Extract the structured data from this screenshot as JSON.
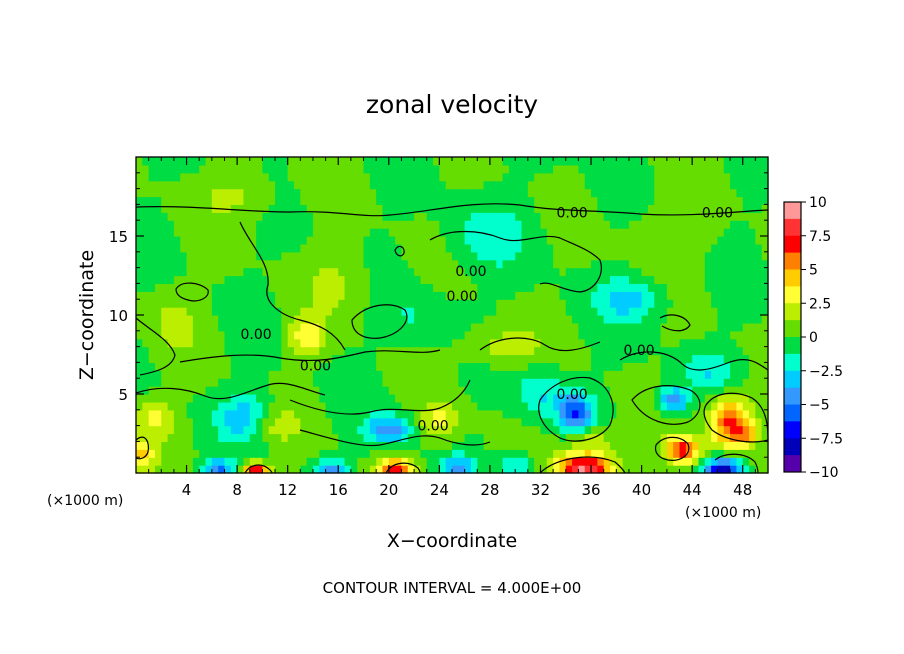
{
  "chart_data": {
    "type": "heatmap",
    "title": "zonal velocity",
    "xlabel": "X−coordinate",
    "ylabel": "Z−coordinate",
    "x_unit_left": "(×1000 m)",
    "x_unit_right": "(×1000 m)",
    "footer": "CONTOUR INTERVAL = 4.000E+00",
    "xlim": [
      0,
      50
    ],
    "ylim": [
      0,
      20
    ],
    "x_ticks": [
      4,
      8,
      12,
      16,
      20,
      24,
      28,
      32,
      36,
      40,
      44,
      48
    ],
    "x_tick_labels": [
      "4",
      "8",
      "12",
      "16",
      "20",
      "24",
      "28",
      "32",
      "36",
      "40",
      "44",
      "48"
    ],
    "y_ticks": [
      5,
      10,
      15
    ],
    "y_tick_labels": [
      "5",
      "10",
      "15"
    ],
    "contour_labels": [
      {
        "text": "0.00",
        "x": 34.5,
        "y": 16.5
      },
      {
        "text": "0.00",
        "x": 46.0,
        "y": 16.5
      },
      {
        "text": "0.00",
        "x": 26.5,
        "y": 12.8
      },
      {
        "text": "0.00",
        "x": 25.8,
        "y": 11.2
      },
      {
        "text": "0.00",
        "x": 9.5,
        "y": 8.8
      },
      {
        "text": "0.00",
        "x": 14.2,
        "y": 6.8
      },
      {
        "text": "0.00",
        "x": 39.8,
        "y": 7.8
      },
      {
        "text": "0.00",
        "x": 34.5,
        "y": 5.0
      },
      {
        "text": "0.00",
        "x": 23.5,
        "y": 3.0
      }
    ],
    "colorbar": {
      "min": -10,
      "max": 10,
      "ticks": [
        10,
        7.5,
        5,
        2.5,
        0,
        -2.5,
        -5,
        -7.5,
        -10
      ],
      "tick_labels": [
        "10",
        "7.5",
        "5",
        "2.5",
        "0",
        "−2.5",
        "−5",
        "−7.5",
        "−10"
      ],
      "colors": [
        "#ff9999",
        "#ff3333",
        "#ff0000",
        "#ff8000",
        "#ffcc00",
        "#ffff33",
        "#bbee00",
        "#66dd00",
        "#00dd44",
        "#00ffcc",
        "#00ccff",
        "#3399ff",
        "#0066ff",
        "#0000ff",
        "#0000bb",
        "#5500aa"
      ]
    },
    "features": [
      {
        "x": 20.5,
        "y": 0.2,
        "v": 7.0,
        "sx": 1.3,
        "sz": 0.7
      },
      {
        "x": 9.5,
        "y": 0.1,
        "v": 8.0,
        "sx": 1.0,
        "sz": 0.6
      },
      {
        "x": 35.5,
        "y": 0.3,
        "v": 9.0,
        "sx": 2.2,
        "sz": 0.9
      },
      {
        "x": 43.2,
        "y": 1.5,
        "v": 7.0,
        "sx": 1.4,
        "sz": 0.9
      },
      {
        "x": 47.0,
        "y": 3.2,
        "v": 7.0,
        "sx": 1.6,
        "sz": 1.6
      },
      {
        "x": 48.5,
        "y": 2.5,
        "v": 3.0,
        "sx": 0.9,
        "sz": 0.8
      },
      {
        "x": 46.5,
        "y": 0.2,
        "v": -9.0,
        "sx": 1.4,
        "sz": 0.8
      },
      {
        "x": 6.5,
        "y": 0.3,
        "v": -5.0,
        "sx": 1.2,
        "sz": 0.6
      },
      {
        "x": 15.5,
        "y": 0.3,
        "v": -4.0,
        "sx": 1.2,
        "sz": 0.6
      },
      {
        "x": 25.5,
        "y": 0.4,
        "v": -4.0,
        "sx": 1.2,
        "sz": 0.7
      },
      {
        "x": 30.0,
        "y": 0.5,
        "v": -3.0,
        "sx": 1.5,
        "sz": 0.7
      },
      {
        "x": 34.8,
        "y": 3.9,
        "v": -6.0,
        "sx": 1.3,
        "sz": 1.2
      },
      {
        "x": 42.5,
        "y": 4.6,
        "v": -5.0,
        "sx": 1.1,
        "sz": 0.8
      },
      {
        "x": 20.0,
        "y": 2.8,
        "v": -4.5,
        "sx": 1.8,
        "sz": 0.9
      },
      {
        "x": 8.5,
        "y": 3.5,
        "v": -3.5,
        "sx": 2.0,
        "sz": 1.4
      },
      {
        "x": 1.5,
        "y": 3.5,
        "v": 3.0,
        "sx": 1.5,
        "sz": 1.2
      },
      {
        "x": 0.5,
        "y": 1.2,
        "v": 4.0,
        "sx": 1.0,
        "sz": 1.0
      },
      {
        "x": 13.5,
        "y": 8.7,
        "v": 3.5,
        "sx": 1.4,
        "sz": 1.2
      },
      {
        "x": 24.0,
        "y": 3.3,
        "v": 3.0,
        "sx": 1.5,
        "sz": 1.2
      },
      {
        "x": 36.0,
        "y": 2.0,
        "v": 2.5,
        "sx": 2.0,
        "sz": 1.0
      },
      {
        "x": 11.0,
        "y": 3.0,
        "v": 2.0,
        "sx": 2.0,
        "sz": 1.0
      },
      {
        "x": 39.0,
        "y": 11.0,
        "v": -3.0,
        "sx": 2.6,
        "sz": 1.4
      },
      {
        "x": 32.0,
        "y": 5.0,
        "v": -2.5,
        "sx": 2.0,
        "sz": 1.5
      },
      {
        "x": 45.5,
        "y": 6.5,
        "v": -2.2,
        "sx": 2.0,
        "sz": 1.2
      },
      {
        "x": 28.0,
        "y": 15.0,
        "v": -2.0,
        "sx": 3.0,
        "sz": 2.0
      },
      {
        "x": 16.0,
        "y": 12.0,
        "v": 1.5,
        "sx": 2.5,
        "sz": 2.0
      },
      {
        "x": 8.0,
        "y": 17.5,
        "v": 1.5,
        "sx": 3.0,
        "sz": 1.5
      },
      {
        "x": 42.0,
        "y": 15.0,
        "v": 1.2,
        "sx": 3.0,
        "sz": 2.0
      },
      {
        "x": 3.0,
        "y": 9.5,
        "v": 1.5,
        "sx": 2.0,
        "sz": 2.0
      },
      {
        "x": 22.0,
        "y": 10.0,
        "v": -1.2,
        "sx": 2.5,
        "sz": 1.8
      },
      {
        "x": 29.0,
        "y": 8.0,
        "v": 2.0,
        "sx": 3.0,
        "sz": 1.2
      }
    ]
  }
}
